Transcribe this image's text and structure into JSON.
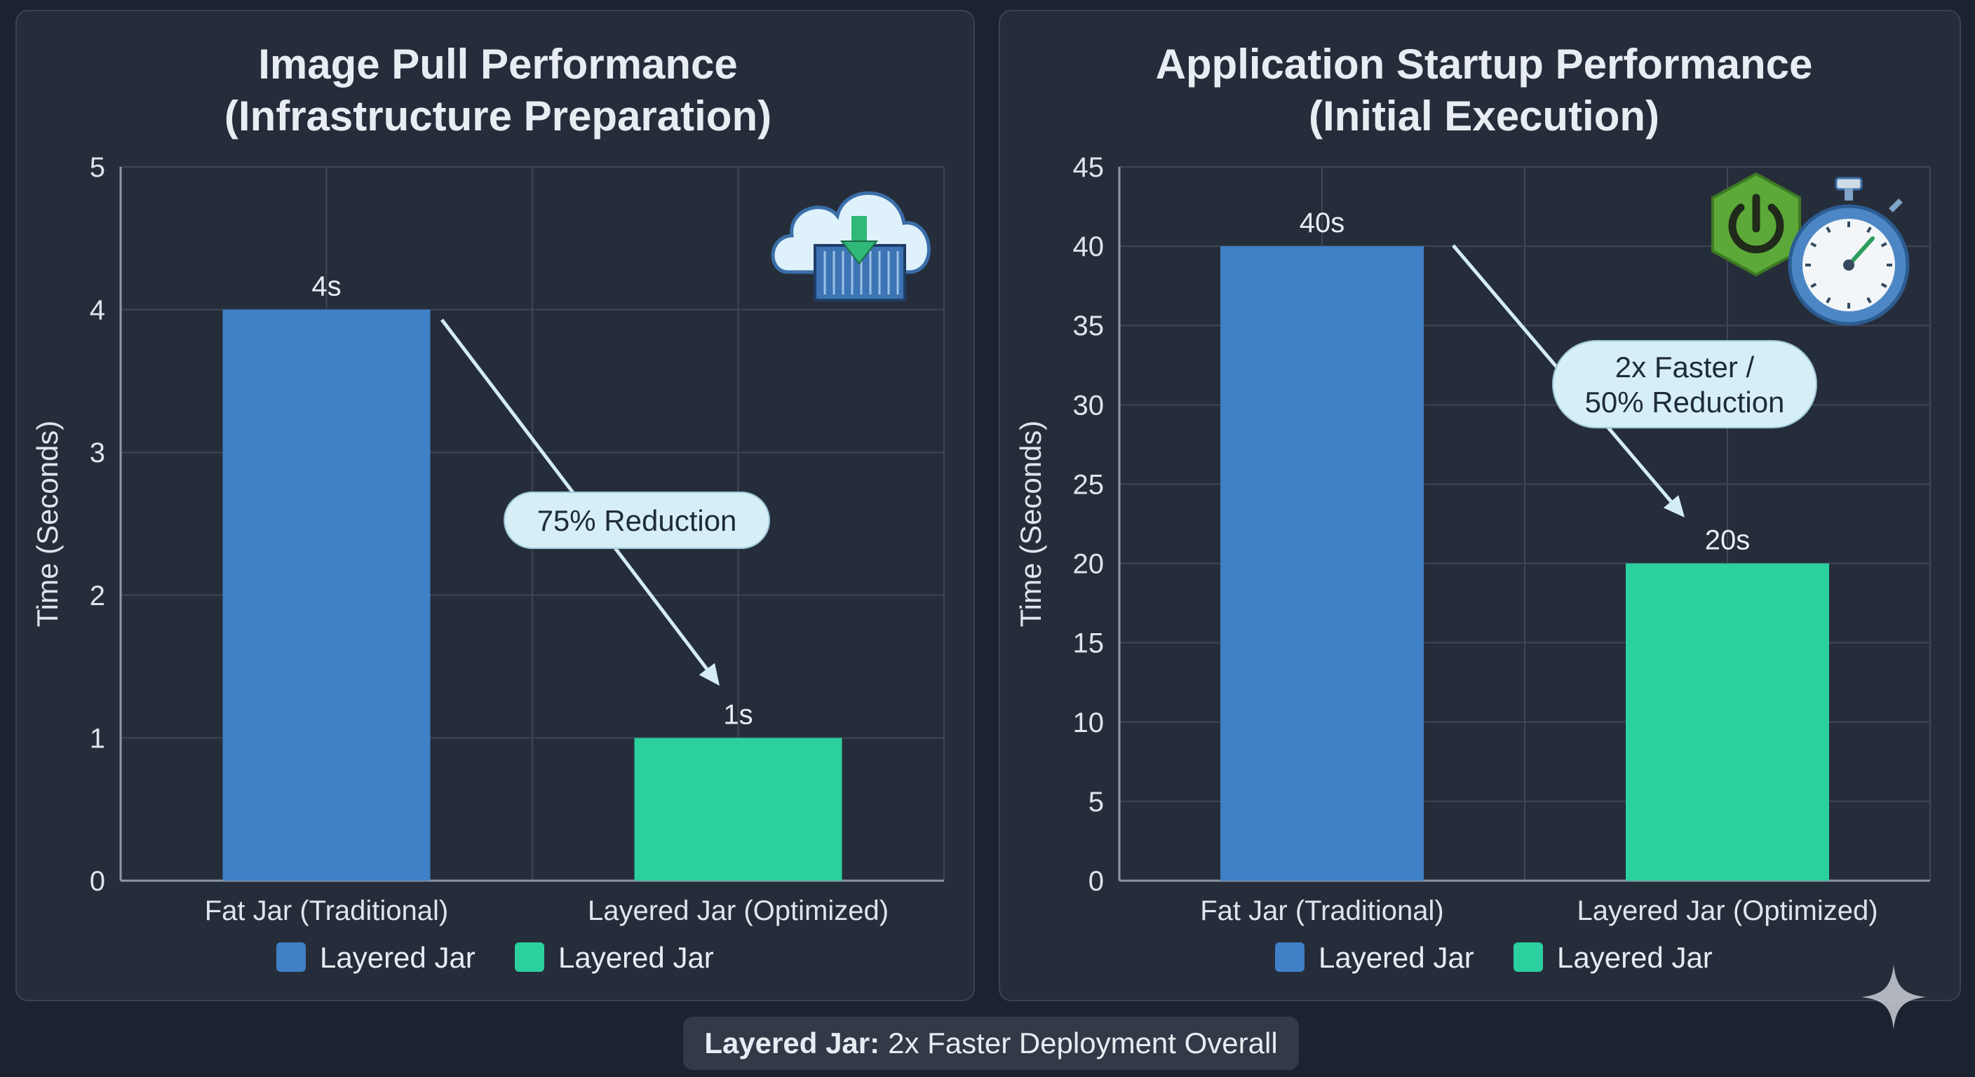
{
  "colors": {
    "fat_jar": "#3f80c6",
    "layered_jar": "#2ccf9e",
    "grid": "#3e4656",
    "axis": "#8e97a6",
    "callout_bg": "#d6eef6",
    "arrow": "#d4ecf5"
  },
  "chart_data": [
    {
      "type": "bar",
      "title_lines": [
        "Image Pull Performance",
        "(Infrastructure Preparation)"
      ],
      "categories": [
        "Fat Jar (Traditional)",
        "Layered Jar (Optimized)"
      ],
      "values": [
        4,
        1
      ],
      "data_labels": [
        "4s",
        "1s"
      ],
      "ylabel": "Time (Seconds)",
      "ylim": [
        0,
        5
      ],
      "yticks": [
        0,
        1,
        2,
        3,
        4,
        5
      ],
      "grid": true,
      "legend": [
        "Layered Jar",
        "Layered Jar"
      ],
      "annotation": [
        "75% Reduction"
      ],
      "icon": "cloud-download-container-icon"
    },
    {
      "type": "bar",
      "title_lines": [
        "Application Startup Performance",
        "(Initial Execution)"
      ],
      "categories": [
        "Fat Jar (Traditional)",
        "Layered Jar (Optimized)"
      ],
      "values": [
        40,
        20
      ],
      "data_labels": [
        "40s",
        "20s"
      ],
      "ylabel": "Time (Seconds)",
      "ylim": [
        0,
        45
      ],
      "yticks": [
        0,
        5,
        10,
        15,
        20,
        25,
        30,
        35,
        40,
        45
      ],
      "grid": true,
      "legend": [
        "Layered Jar",
        "Layered Jar"
      ],
      "annotation": [
        "2x Faster /",
        "50% Reduction"
      ],
      "icon": "power-stopwatch-icon"
    }
  ],
  "footer": {
    "bold": "Layered Jar:",
    "text": "2x Faster Deployment Overall"
  }
}
